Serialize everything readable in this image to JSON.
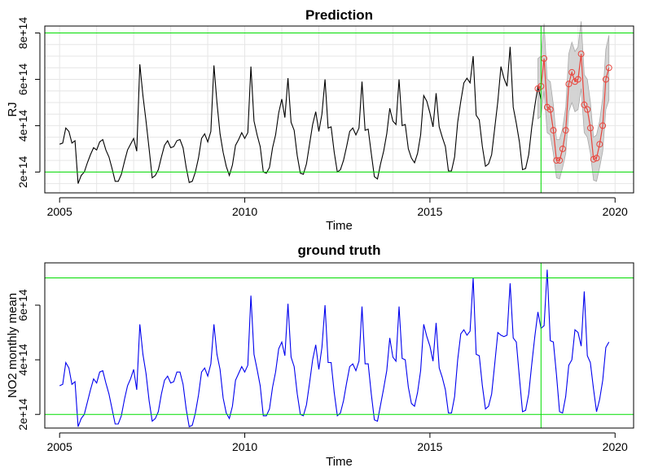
{
  "chart_data": [
    {
      "type": "line",
      "title": "Prediction",
      "xlabel": "Time",
      "ylabel": "RJ",
      "xlim": [
        2004.6,
        2020.5
      ],
      "ylim": [
        110000000000000.0,
        830000000000000.0
      ],
      "xticks": [
        2005,
        2010,
        2015,
        2020
      ],
      "yticks": [
        200000000000000.0,
        400000000000000.0,
        600000000000000.0,
        800000000000000.0
      ],
      "ytick_labels": [
        "2e+14",
        "4e+14",
        "6e+14",
        "8e+14"
      ],
      "grid": true,
      "hlines": [
        200000000000000.0,
        800000000000000.0
      ],
      "vline": 2018.0,
      "colors": {
        "series": "#000000",
        "prediction": "#e8453c",
        "band": "#a9a9a9",
        "reference": "#00dd00"
      },
      "observed_series": {
        "name": "",
        "start": 2005.0,
        "step_months": 1,
        "values": [
          320000000000000.0,
          325000000000000.0,
          390000000000000.0,
          375000000000000.0,
          325000000000000.0,
          335000000000000.0,
          150000000000000.0,
          185000000000000.0,
          200000000000000.0,
          240000000000000.0,
          275000000000000.0,
          305000000000000.0,
          295000000000000.0,
          330000000000000.0,
          340000000000000.0,
          295000000000000.0,
          265000000000000.0,
          215000000000000.0,
          160000000000000.0,
          160000000000000.0,
          190000000000000.0,
          245000000000000.0,
          295000000000000.0,
          320000000000000.0,
          345000000000000.0,
          290000000000000.0,
          665000000000000.0,
          530000000000000.0,
          420000000000000.0,
          300000000000000.0,
          175000000000000.0,
          185000000000000.0,
          210000000000000.0,
          265000000000000.0,
          315000000000000.0,
          335000000000000.0,
          305000000000000.0,
          310000000000000.0,
          335000000000000.0,
          340000000000000.0,
          305000000000000.0,
          220000000000000.0,
          155000000000000.0,
          160000000000000.0,
          200000000000000.0,
          260000000000000.0,
          345000000000000.0,
          365000000000000.0,
          330000000000000.0,
          375000000000000.0,
          660000000000000.0,
          500000000000000.0,
          365000000000000.0,
          285000000000000.0,
          225000000000000.0,
          185000000000000.0,
          230000000000000.0,
          315000000000000.0,
          340000000000000.0,
          370000000000000.0,
          345000000000000.0,
          370000000000000.0,
          655000000000000.0,
          420000000000000.0,
          360000000000000.0,
          310000000000000.0,
          200000000000000.0,
          195000000000000.0,
          220000000000000.0,
          305000000000000.0,
          360000000000000.0,
          455000000000000.0,
          515000000000000.0,
          435000000000000.0,
          605000000000000.0,
          415000000000000.0,
          380000000000000.0,
          270000000000000.0,
          195000000000000.0,
          190000000000000.0,
          235000000000000.0,
          320000000000000.0,
          405000000000000.0,
          460000000000000.0,
          375000000000000.0,
          450000000000000.0,
          600000000000000.0,
          390000000000000.0,
          395000000000000.0,
          285000000000000.0,
          200000000000000.0,
          210000000000000.0,
          250000000000000.0,
          310000000000000.0,
          375000000000000.0,
          390000000000000.0,
          360000000000000.0,
          390000000000000.0,
          590000000000000.0,
          380000000000000.0,
          385000000000000.0,
          280000000000000.0,
          180000000000000.0,
          170000000000000.0,
          235000000000000.0,
          290000000000000.0,
          365000000000000.0,
          475000000000000.0,
          420000000000000.0,
          405000000000000.0,
          600000000000000.0,
          400000000000000.0,
          405000000000000.0,
          300000000000000.0,
          260000000000000.0,
          240000000000000.0,
          280000000000000.0,
          360000000000000.0,
          530000000000000.0,
          505000000000000.0,
          455000000000000.0,
          395000000000000.0,
          540000000000000.0,
          395000000000000.0,
          350000000000000.0,
          310000000000000.0,
          205000000000000.0,
          205000000000000.0,
          265000000000000.0,
          415000000000000.0,
          505000000000000.0,
          585000000000000.0,
          605000000000000.0,
          585000000000000.0,
          700000000000000.0,
          445000000000000.0,
          425000000000000.0,
          310000000000000.0,
          225000000000000.0,
          235000000000000.0,
          275000000000000.0,
          390000000000000.0,
          505000000000000.0,
          655000000000000.0,
          605000000000000.0,
          570000000000000.0,
          740000000000000.0,
          480000000000000.0,
          410000000000000.0,
          330000000000000.0,
          210000000000000.0,
          215000000000000.0,
          275000000000000.0,
          395000000000000.0,
          485000000000000.0,
          570000000000000.0,
          515000000000000.0
        ]
      },
      "prediction_series": {
        "name": "",
        "start": 2017.917,
        "step_months": 1,
        "values": [
          560000000000000.0,
          570000000000000.0,
          690000000000000.0,
          480000000000000.0,
          470000000000000.0,
          380000000000000.0,
          250000000000000.0,
          250000000000000.0,
          300000000000000.0,
          380000000000000.0,
          580000000000000.0,
          630000000000000.0,
          590000000000000.0,
          600000000000000.0,
          710000000000000.0,
          490000000000000.0,
          470000000000000.0,
          390000000000000.0,
          255000000000000.0,
          260000000000000.0,
          320000000000000.0,
          400000000000000.0,
          600000000000000.0,
          650000000000000.0
        ]
      },
      "prediction_band": {
        "lower": [
          430000000000000.0,
          440000000000000.0,
          550000000000000.0,
          370000000000000.0,
          360000000000000.0,
          280000000000000.0,
          175000000000000.0,
          170000000000000.0,
          220000000000000.0,
          280000000000000.0,
          460000000000000.0,
          500000000000000.0,
          460000000000000.0,
          470000000000000.0,
          560000000000000.0,
          370000000000000.0,
          350000000000000.0,
          280000000000000.0,
          165000000000000.0,
          160000000000000.0,
          220000000000000.0,
          290000000000000.0,
          470000000000000.0,
          510000000000000.0
        ],
        "upper": [
          690000000000000.0,
          700000000000000.0,
          840000000000000.0,
          600000000000000.0,
          590000000000000.0,
          490000000000000.0,
          340000000000000.0,
          340000000000000.0,
          390000000000000.0,
          480000000000000.0,
          710000000000000.0,
          760000000000000.0,
          720000000000000.0,
          740000000000000.0,
          850000000000000.0,
          620000000000000.0,
          600000000000000.0,
          500000000000000.0,
          350000000000000.0,
          360000000000000.0,
          420000000000000.0,
          520000000000000.0,
          730000000000000.0,
          790000000000000.0
        ]
      }
    },
    {
      "type": "line",
      "title": "ground truth",
      "xlabel": "Time",
      "ylabel": "NO2 monthly mean",
      "xlim": [
        2004.6,
        2020.5
      ],
      "ylim": [
        150000000000000.0,
        755000000000000.0
      ],
      "xticks": [
        2005,
        2010,
        2015,
        2020
      ],
      "yticks": [
        200000000000000.0,
        400000000000000.0,
        600000000000000.0
      ],
      "ytick_labels": [
        "2e+14",
        "4e+14",
        "6e+14"
      ],
      "grid": false,
      "hlines": [
        200000000000000.0,
        700000000000000.0
      ],
      "vline": 2018.0,
      "colors": {
        "series": "#0000ee",
        "reference": "#00dd00"
      },
      "series": {
        "name": "",
        "start": 2005.0,
        "step_months": 1,
        "values": [
          305000000000000.0,
          310000000000000.0,
          390000000000000.0,
          370000000000000.0,
          310000000000000.0,
          320000000000000.0,
          155000000000000.0,
          185000000000000.0,
          200000000000000.0,
          245000000000000.0,
          290000000000000.0,
          330000000000000.0,
          315000000000000.0,
          355000000000000.0,
          360000000000000.0,
          315000000000000.0,
          275000000000000.0,
          220000000000000.0,
          165000000000000.0,
          165000000000000.0,
          195000000000000.0,
          255000000000000.0,
          305000000000000.0,
          330000000000000.0,
          365000000000000.0,
          290000000000000.0,
          530000000000000.0,
          420000000000000.0,
          350000000000000.0,
          250000000000000.0,
          175000000000000.0,
          185000000000000.0,
          210000000000000.0,
          275000000000000.0,
          325000000000000.0,
          340000000000000.0,
          315000000000000.0,
          320000000000000.0,
          355000000000000.0,
          355000000000000.0,
          310000000000000.0,
          220000000000000.0,
          155000000000000.0,
          160000000000000.0,
          205000000000000.0,
          270000000000000.0,
          355000000000000.0,
          370000000000000.0,
          340000000000000.0,
          385000000000000.0,
          530000000000000.0,
          420000000000000.0,
          365000000000000.0,
          260000000000000.0,
          205000000000000.0,
          185000000000000.0,
          230000000000000.0,
          325000000000000.0,
          350000000000000.0,
          375000000000000.0,
          355000000000000.0,
          380000000000000.0,
          635000000000000.0,
          420000000000000.0,
          365000000000000.0,
          305000000000000.0,
          195000000000000.0,
          195000000000000.0,
          220000000000000.0,
          300000000000000.0,
          355000000000000.0,
          440000000000000.0,
          465000000000000.0,
          415000000000000.0,
          605000000000000.0,
          410000000000000.0,
          375000000000000.0,
          275000000000000.0,
          200000000000000.0,
          195000000000000.0,
          235000000000000.0,
          315000000000000.0,
          400000000000000.0,
          455000000000000.0,
          365000000000000.0,
          445000000000000.0,
          600000000000000.0,
          390000000000000.0,
          390000000000000.0,
          280000000000000.0,
          195000000000000.0,
          205000000000000.0,
          250000000000000.0,
          315000000000000.0,
          375000000000000.0,
          385000000000000.0,
          360000000000000.0,
          395000000000000.0,
          595000000000000.0,
          385000000000000.0,
          385000000000000.0,
          275000000000000.0,
          180000000000000.0,
          175000000000000.0,
          235000000000000.0,
          295000000000000.0,
          360000000000000.0,
          480000000000000.0,
          410000000000000.0,
          395000000000000.0,
          595000000000000.0,
          405000000000000.0,
          400000000000000.0,
          300000000000000.0,
          240000000000000.0,
          230000000000000.0,
          280000000000000.0,
          360000000000000.0,
          530000000000000.0,
          485000000000000.0,
          450000000000000.0,
          395000000000000.0,
          535000000000000.0,
          370000000000000.0,
          335000000000000.0,
          290000000000000.0,
          205000000000000.0,
          205000000000000.0,
          265000000000000.0,
          400000000000000.0,
          495000000000000.0,
          510000000000000.0,
          490000000000000.0,
          505000000000000.0,
          700000000000000.0,
          420000000000000.0,
          415000000000000.0,
          305000000000000.0,
          220000000000000.0,
          230000000000000.0,
          275000000000000.0,
          385000000000000.0,
          500000000000000.0,
          490000000000000.0,
          485000000000000.0,
          490000000000000.0,
          680000000000000.0,
          480000000000000.0,
          465000000000000.0,
          335000000000000.0,
          210000000000000.0,
          215000000000000.0,
          275000000000000.0,
          385000000000000.0,
          485000000000000.0,
          575000000000000.0,
          515000000000000.0,
          525000000000000.0,
          730000000000000.0,
          470000000000000.0,
          465000000000000.0,
          345000000000000.0,
          210000000000000.0,
          205000000000000.0,
          265000000000000.0,
          380000000000000.0,
          400000000000000.0,
          510000000000000.0,
          500000000000000.0,
          450000000000000.0,
          650000000000000.0,
          415000000000000.0,
          390000000000000.0,
          295000000000000.0,
          210000000000000.0,
          255000000000000.0,
          325000000000000.0,
          445000000000000.0,
          465000000000000.0
        ]
      }
    }
  ]
}
